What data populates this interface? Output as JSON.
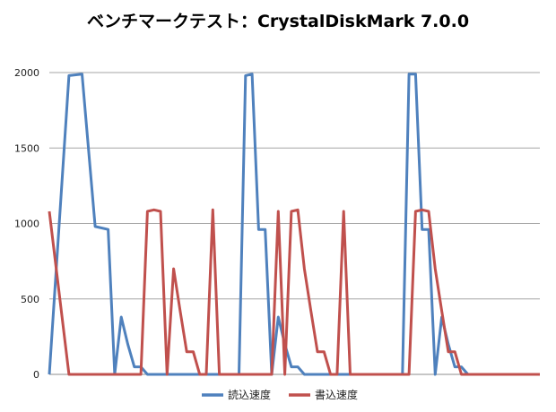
{
  "chart_data": {
    "type": "line",
    "title": "ベンチマークテスト：CrystalDiskMark 7.0.0",
    "xlabel": "",
    "ylabel": "",
    "ylim": [
      0,
      2000
    ],
    "yticks": [
      "0",
      "500",
      "1000",
      "1500",
      "2000"
    ],
    "grid": true,
    "legend_position": "bottom",
    "x": [
      0,
      60,
      100,
      140,
      180,
      200,
      220,
      240,
      260,
      280,
      300,
      320,
      340,
      360,
      380,
      400,
      420,
      440,
      460,
      480,
      500,
      520,
      540,
      560,
      580,
      600,
      620,
      640,
      660,
      680,
      700,
      720,
      740,
      760,
      780,
      800,
      820,
      840,
      860,
      880,
      900,
      920,
      940,
      960,
      980,
      1000,
      1020,
      1040,
      1060,
      1080,
      1100,
      1120,
      1140,
      1160,
      1180,
      1200,
      1220,
      1240,
      1260,
      1280,
      1300,
      1320,
      1340,
      1360,
      1380,
      1400,
      1420,
      1440,
      1460,
      1480,
      1500
    ],
    "series": [
      {
        "name": "読込速度",
        "color": "#4f81bd",
        "values": [
          0,
          1980,
          1990,
          980,
          960,
          0,
          380,
          200,
          50,
          50,
          0,
          0,
          0,
          0,
          0,
          0,
          0,
          0,
          0,
          0,
          0,
          0,
          0,
          0,
          0,
          1980,
          1990,
          960,
          960,
          0,
          380,
          200,
          50,
          50,
          0,
          0,
          0,
          0,
          0,
          0,
          0,
          0,
          0,
          0,
          0,
          0,
          0,
          0,
          0,
          0,
          1990,
          1990,
          960,
          960,
          0,
          380,
          200,
          50,
          50,
          0,
          0,
          0,
          0,
          0,
          0,
          0,
          0,
          0,
          0,
          0,
          0
        ],
        "peaks": [
          [
            120,
            2000
          ],
          [
            620,
            2000
          ],
          [
            1120,
            2000
          ]
        ]
      },
      {
        "name": "書込速度",
        "color": "#c0504d",
        "values": [
          1080,
          0,
          0,
          0,
          0,
          0,
          0,
          0,
          0,
          0,
          1080,
          1090,
          1080,
          0,
          700,
          420,
          150,
          150,
          0,
          0,
          1090,
          0,
          0,
          0,
          0,
          0,
          0,
          0,
          0,
          0,
          1080,
          0,
          1080,
          1090,
          700,
          420,
          150,
          150,
          0,
          0,
          1080,
          0,
          0,
          0,
          0,
          0,
          0,
          0,
          0,
          0,
          0,
          1080,
          1090,
          1080,
          700,
          420,
          150,
          150,
          0,
          0,
          0,
          0,
          0,
          0,
          0,
          0,
          0,
          0,
          0,
          0,
          0
        ]
      }
    ]
  }
}
